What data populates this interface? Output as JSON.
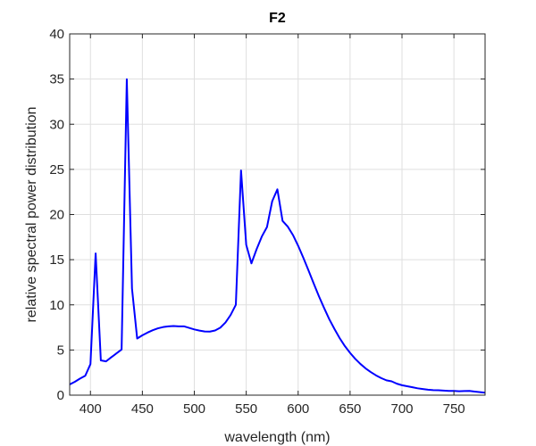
{
  "chart_data": {
    "type": "line",
    "title": "F2",
    "xlabel": "wavelength (nm)",
    "ylabel": "relative spectral power distribution",
    "xlim": [
      380,
      780
    ],
    "ylim": [
      0,
      40
    ],
    "xticks": [
      400,
      450,
      500,
      550,
      600,
      650,
      700,
      750
    ],
    "yticks": [
      0,
      5,
      10,
      15,
      20,
      25,
      30,
      35,
      40
    ],
    "grid": true,
    "colors": {
      "line": "#0000ff",
      "grid": "#dfdfdf",
      "axis": "#262626",
      "background": "#ffffff"
    },
    "series": [
      {
        "x": [
          380,
          385,
          390,
          395,
          400,
          405,
          410,
          415,
          420,
          425,
          430,
          435,
          440,
          445,
          450,
          455,
          460,
          465,
          470,
          475,
          480,
          485,
          490,
          495,
          500,
          505,
          510,
          515,
          520,
          525,
          530,
          535,
          540,
          545,
          550,
          555,
          560,
          565,
          570,
          575,
          580,
          585,
          590,
          595,
          600,
          605,
          610,
          615,
          620,
          625,
          630,
          635,
          640,
          645,
          650,
          655,
          660,
          665,
          670,
          675,
          680,
          685,
          690,
          695,
          700,
          705,
          710,
          715,
          720,
          725,
          730,
          735,
          740,
          745,
          750,
          755,
          760,
          765,
          770,
          775,
          780
        ],
        "y": [
          1.18,
          1.48,
          1.84,
          2.15,
          3.44,
          15.69,
          3.85,
          3.74,
          4.19,
          4.62,
          5.06,
          34.98,
          11.81,
          6.27,
          6.63,
          6.93,
          7.19,
          7.4,
          7.54,
          7.62,
          7.65,
          7.62,
          7.62,
          7.45,
          7.28,
          7.15,
          7.05,
          7.04,
          7.16,
          7.47,
          8.04,
          8.88,
          10.01,
          24.88,
          16.64,
          14.59,
          16.16,
          17.56,
          18.62,
          21.47,
          22.79,
          19.29,
          18.66,
          17.73,
          16.54,
          15.21,
          13.8,
          12.36,
          10.95,
          9.65,
          8.4,
          7.32,
          6.31,
          5.43,
          4.68,
          4.02,
          3.45,
          2.96,
          2.55,
          2.19,
          1.89,
          1.64,
          1.53,
          1.27,
          1.1,
          0.99,
          0.88,
          0.76,
          0.68,
          0.61,
          0.56,
          0.54,
          0.51,
          0.47,
          0.47,
          0.43,
          0.46,
          0.47,
          0.4,
          0.33,
          0.27
        ]
      }
    ]
  }
}
